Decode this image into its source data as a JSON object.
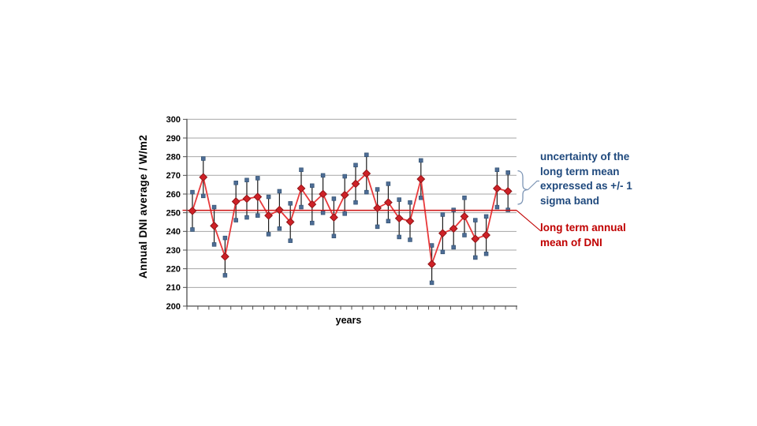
{
  "chart_data": {
    "type": "line",
    "values": [
      251,
      269,
      243,
      226.5,
      256,
      257.5,
      258.5,
      248.5,
      251.5,
      245,
      263,
      254.5,
      260,
      247.5,
      259.5,
      265.5,
      271,
      252.5,
      255.5,
      247,
      245.5,
      268,
      222.5,
      239,
      241.5,
      248,
      236,
      238,
      263,
      261.5
    ],
    "error_bar_plus_minus": 10,
    "mean_line_value": 251.3,
    "xlabel": "years",
    "ylabel": "Annual DNI average / W/m2",
    "ylim": [
      200,
      300
    ],
    "ytick_step": 10,
    "x_tick_count": 31,
    "x_tick_labels": [],
    "grid": "horizontal",
    "legend": "none"
  },
  "annotations": {
    "uncertainty_label": {
      "lines": [
        "uncertainty of the",
        "long term mean",
        "expressed as +/- 1",
        "sigma band"
      ],
      "color": "#1f497d"
    },
    "mean_label": {
      "lines": [
        "long term annual",
        "mean of DNI"
      ],
      "color": "#c00000"
    }
  },
  "colors": {
    "series_line": "#e8393b",
    "marker_fill": "#cf2127",
    "marker_border": "#8e1517",
    "error_bar": "#1c1c1c",
    "error_cap": "#4e6d96",
    "error_cap_border": "#31506f",
    "mean_line": "#cc1111",
    "gridline": "#a6a6a6",
    "axis": "#4d4d4d",
    "brace": "#7d95b5",
    "pointer_red": "#c00000"
  }
}
